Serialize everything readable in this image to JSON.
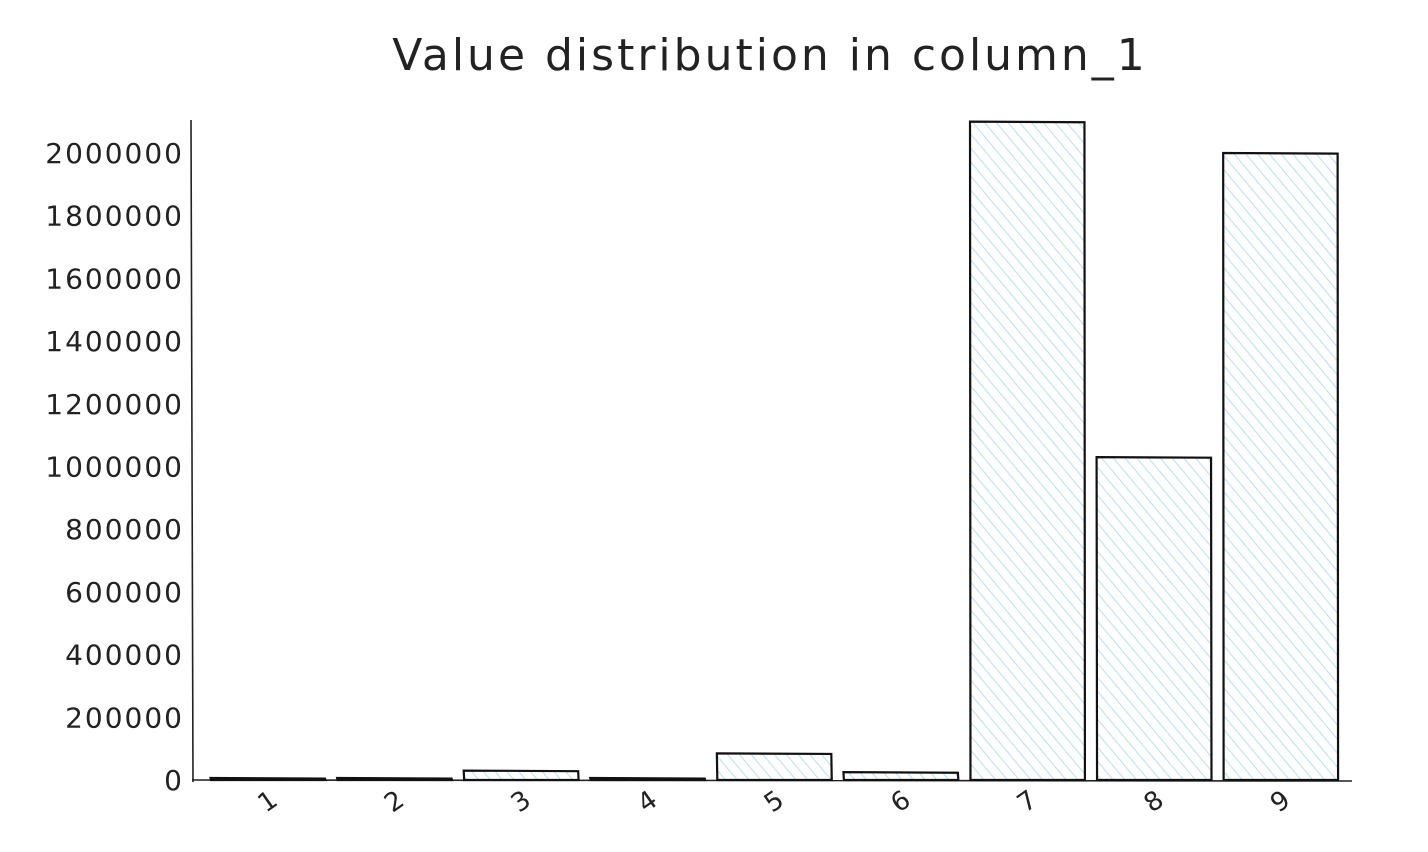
{
  "chart_data": {
    "type": "bar",
    "title": "Value distribution in column_1",
    "xlabel": "",
    "ylabel": "",
    "categories": [
      "1",
      "2",
      "3",
      "4",
      "5",
      "6",
      "7",
      "8",
      "9"
    ],
    "values": [
      3000,
      2000,
      30000,
      3000,
      85000,
      25000,
      2100000,
      1030000,
      2000000
    ],
    "ylim": [
      0,
      2100000
    ],
    "yticks": [
      "0",
      "200000",
      "400000",
      "600000",
      "800000",
      "1000000",
      "1200000",
      "1400000",
      "1600000",
      "1800000",
      "2000000"
    ],
    "bar_fill_color": "#a7d8f0",
    "bar_outline_color": "#111111",
    "grid": false,
    "legend": "none"
  }
}
